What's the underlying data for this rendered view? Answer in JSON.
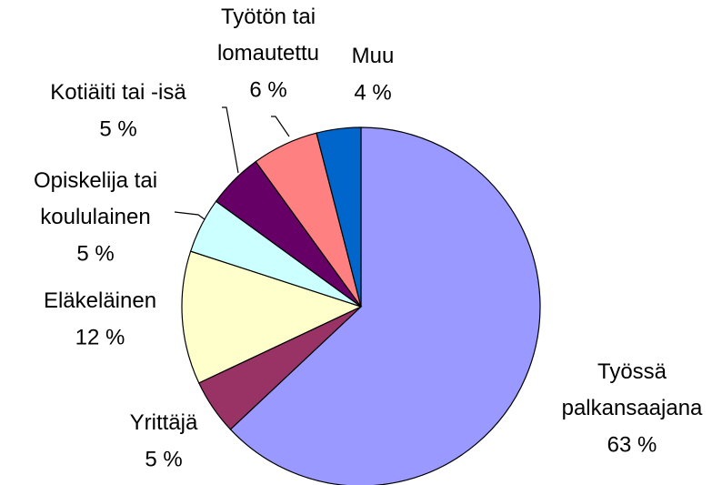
{
  "chart_data": {
    "type": "pie",
    "categories": [
      "Työssä\npalkansaajana",
      "Yrittäjä",
      "Eläkeläinen",
      "Opiskelija tai\nkoululainen",
      "Kotiäiti tai -isä",
      "Työtön tai\nlomautettu",
      "Muu"
    ],
    "values": [
      63,
      5,
      12,
      5,
      5,
      6,
      4
    ],
    "value_labels": [
      "63 %",
      "5 %",
      "12 %",
      "5 %",
      "5 %",
      "6 %",
      "4 %"
    ],
    "colors": [
      "#9999ff",
      "#993366",
      "#ffffcc",
      "#ccffff",
      "#660066",
      "#ff8080",
      "#0066cc"
    ]
  }
}
